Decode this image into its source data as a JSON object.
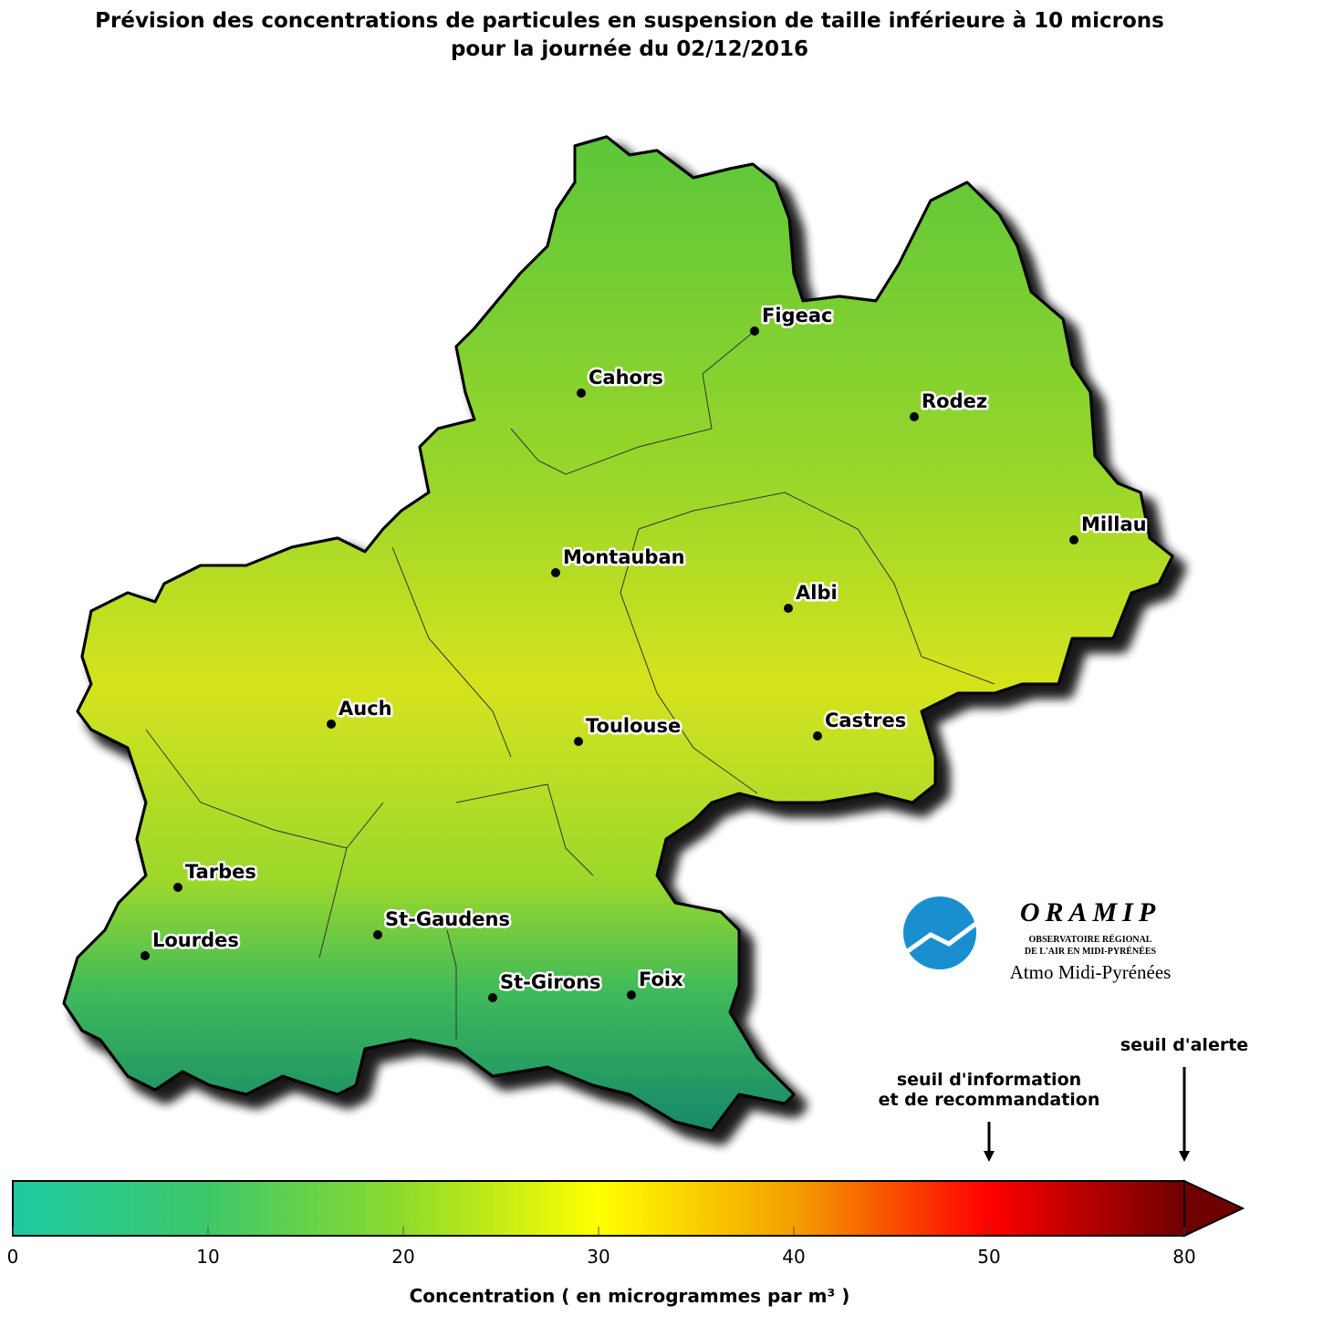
{
  "title": [
    "Prévision des concentrations de particules en suspension de taille inférieure à 10 microns",
    "pour la journée du 02/12/2016"
  ],
  "cities": [
    "Figeac",
    "Cahors",
    "Rodez",
    "Millau",
    "Montauban",
    "Albi",
    "Auch",
    "Toulouse",
    "Castres",
    "Tarbes",
    "St-Gaudens",
    "Lourdes",
    "St-Girons",
    "Foix"
  ],
  "logo": {
    "name": "ORAMIP",
    "line1": "OBSERVATOIRE RÉGIONAL",
    "line2": "DE L'AIR EN MIDI-PYRÉNÉES",
    "subtitle": "Atmo Midi-Pyrénées"
  },
  "colorbar": {
    "ticks": [
      0,
      10,
      20,
      30,
      40,
      50,
      80
    ],
    "colors": [
      "#1fcaa2",
      "#3ec86a",
      "#8edb2c",
      "#ffff00",
      "#f4a000",
      "#ff0000",
      "#6e0000"
    ],
    "label": "Concentration ( en microgrammes par m³ )",
    "thresholds": [
      {
        "label": [
          "seuil d'information",
          "et de recommandation"
        ],
        "value": 50
      },
      {
        "label": [
          "seuil d'alerte"
        ],
        "value": 80
      }
    ]
  }
}
